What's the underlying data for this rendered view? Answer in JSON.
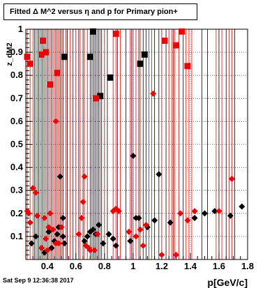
{
  "canvas_title": "Fitted Δ M^2 versus η and p for Primary pion+",
  "footer_timestamp": "Sat Sep  9 12:36:38 2017",
  "chart_data": {
    "type": "scatter",
    "title": "Fitted Δ M^2 versus η and p for Primary pion+",
    "xlabel": "p[GeV/c]",
    "ylabel": "z_dM2",
    "xlim": [
      0.25,
      1.8
    ],
    "ylim": [
      0,
      1
    ],
    "x_ticks": [
      0.4,
      0.6,
      0.8,
      1,
      1.2,
      1.4,
      1.6,
      1.8
    ],
    "y_ticks": [
      0.1,
      0.2,
      0.3,
      0.4,
      0.5,
      0.6,
      0.7,
      0.8,
      0.9,
      1
    ],
    "grid": true,
    "colors": {
      "black_series": "#000000",
      "red_series": "#ee0000"
    },
    "series": [
      {
        "color": "black",
        "marker": "diamond",
        "points": [
          [
            0.29,
            0.07
          ],
          [
            0.32,
            0.1
          ],
          [
            0.36,
            0.05
          ],
          [
            0.38,
            0.03
          ],
          [
            0.41,
            0.12
          ],
          [
            0.43,
            0.05
          ],
          [
            0.45,
            0.08
          ],
          [
            0.47,
            0.11
          ],
          [
            0.48,
            0.14
          ],
          [
            0.49,
            0.36
          ],
          [
            0.51,
            0.1
          ],
          [
            0.52,
            0.07
          ],
          [
            0.51,
            0.18
          ],
          [
            0.66,
            0.08
          ],
          [
            0.68,
            0.1
          ],
          [
            0.7,
            0.12
          ],
          [
            0.72,
            0.13
          ],
          [
            0.74,
            0.11
          ],
          [
            0.76,
            0.15
          ],
          [
            0.79,
            0.07
          ],
          [
            0.83,
            0.11
          ],
          [
            0.86,
            0.09
          ],
          [
            0.88,
            0.06
          ],
          [
            0.98,
            0.08
          ],
          [
            1.0,
            0.45
          ],
          [
            1.02,
            0.18
          ],
          [
            1.04,
            0.18
          ],
          [
            1.1,
            0.14
          ],
          [
            1.15,
            0.17
          ],
          [
            1.18,
            0.37
          ],
          [
            1.26,
            0.16
          ],
          [
            1.43,
            0.18
          ],
          [
            1.5,
            0.2
          ],
          [
            1.57,
            0.21
          ],
          [
            1.68,
            0.19
          ],
          [
            1.76,
            0.23
          ]
        ]
      },
      {
        "color": "red",
        "marker": "diamond",
        "points": [
          [
            0.26,
            0.21
          ],
          [
            0.27,
            0.2
          ],
          [
            0.28,
            0.16
          ],
          [
            0.3,
            0.31
          ],
          [
            0.32,
            0.29
          ],
          [
            0.33,
            0.19
          ],
          [
            0.36,
            0.05
          ],
          [
            0.38,
            0.18
          ],
          [
            0.39,
            0.09
          ],
          [
            0.4,
            0.04
          ],
          [
            0.41,
            0.14
          ],
          [
            0.42,
            0.2
          ],
          [
            0.44,
            0.13
          ],
          [
            0.46,
            0.6
          ],
          [
            0.46,
            0.07
          ],
          [
            0.48,
            0.07
          ],
          [
            0.5,
            0.14
          ],
          [
            0.62,
            0.11
          ],
          [
            0.64,
            0.18
          ],
          [
            0.65,
            0.25
          ],
          [
            0.66,
            0.36
          ],
          [
            0.67,
            0.06
          ],
          [
            0.69,
            0.05
          ],
          [
            0.7,
            0.04
          ],
          [
            0.73,
            0.04
          ],
          [
            0.75,
            0.11
          ],
          [
            0.86,
            0.21
          ],
          [
            0.88,
            0.22
          ],
          [
            0.9,
            0.21
          ],
          [
            0.97,
            0.12
          ],
          [
            1.02,
            0.1
          ],
          [
            1.05,
            0.13
          ],
          [
            1.07,
            0.06
          ],
          [
            1.09,
            0.15
          ],
          [
            1.14,
            0.72
          ],
          [
            1.2,
            0.02
          ],
          [
            1.3,
            0.02
          ],
          [
            1.33,
            0.2
          ],
          [
            1.38,
            0.17
          ],
          [
            1.43,
            0.21
          ],
          [
            1.6,
            0.21
          ],
          [
            1.69,
            0.35
          ]
        ]
      },
      {
        "color": "black",
        "marker": "square",
        "points": [
          [
            0.52,
            0.88
          ],
          [
            0.7,
            0.88
          ],
          [
            0.72,
            0.99
          ],
          [
            0.77,
            0.71
          ],
          [
            0.84,
            0.79
          ],
          [
            1.05,
            0.85
          ],
          [
            1.08,
            0.89
          ]
        ]
      },
      {
        "color": "red",
        "marker": "square",
        "points": [
          [
            0.26,
            0.88
          ],
          [
            0.28,
            0.85
          ],
          [
            0.36,
            0.89
          ],
          [
            0.37,
            0.95
          ],
          [
            0.39,
            0.9
          ],
          [
            0.42,
            0.76
          ],
          [
            0.47,
            0.81
          ],
          [
            0.74,
            0.7
          ],
          [
            0.88,
            0.98
          ],
          [
            1.22,
            0.95
          ],
          [
            1.3,
            0.93
          ],
          [
            1.34,
            0.99
          ],
          [
            1.38,
            0.84
          ]
        ]
      }
    ],
    "vertical_lines": {
      "black": [
        0.31,
        0.34,
        0.37,
        0.4,
        0.43,
        0.46,
        0.49,
        0.51,
        0.54,
        0.58,
        0.62,
        0.65,
        0.7,
        0.72,
        0.74,
        0.76,
        0.78,
        0.82,
        0.89,
        0.95,
        0.99,
        1.04,
        1.07,
        1.09,
        1.15,
        1.18,
        1.23,
        1.28,
        1.35,
        1.48,
        1.52,
        1.6,
        1.65,
        1.71
      ],
      "red": [
        0.26,
        0.28,
        0.3,
        0.32,
        0.33,
        0.35,
        0.36,
        0.38,
        0.39,
        0.41,
        0.42,
        0.44,
        0.45,
        0.47,
        0.48,
        0.5,
        0.53,
        0.56,
        0.6,
        0.63,
        0.66,
        0.68,
        0.71,
        0.73,
        0.75,
        0.77,
        0.8,
        0.86,
        0.88,
        0.91,
        0.98,
        1.0,
        1.02,
        1.05,
        1.11,
        1.13,
        1.2,
        1.25,
        1.27,
        1.29,
        1.32,
        1.37,
        1.39,
        1.41,
        1.58,
        1.62,
        1.67,
        1.69
      ]
    }
  }
}
